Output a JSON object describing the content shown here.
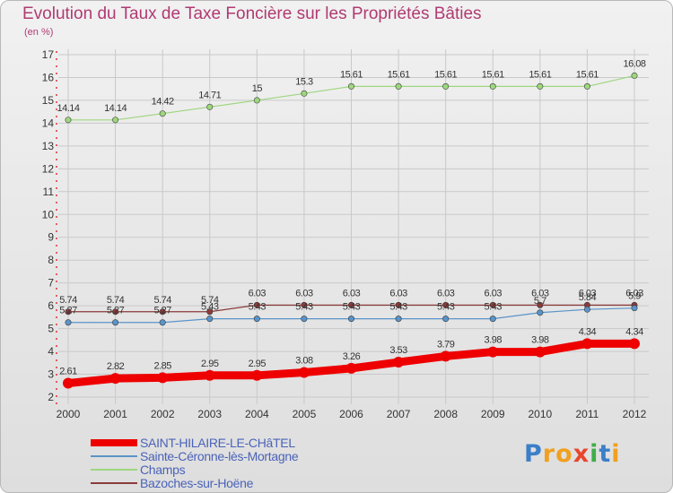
{
  "title": "Evolution du Taux de Taxe Foncière sur les Propriétés Bâties",
  "unit_label": "(en %)",
  "logo": {
    "letters": [
      "P",
      "r",
      "o",
      "x",
      "i",
      "t",
      "i"
    ],
    "colors": [
      "#3b7fc8",
      "#f0a020",
      "#f0a020",
      "#e8452c",
      "#3fae49",
      "#3b7fc8",
      "#f0a020"
    ]
  },
  "chart_data": {
    "type": "line",
    "x": [
      2000,
      2001,
      2002,
      2003,
      2004,
      2005,
      2006,
      2007,
      2008,
      2009,
      2010,
      2011,
      2012
    ],
    "ylim": [
      2,
      17
    ],
    "yticks": [
      2,
      3,
      4,
      5,
      6,
      7,
      8,
      9,
      10,
      11,
      12,
      13,
      14,
      15,
      16,
      17
    ],
    "grid": true,
    "legend_position": "bottom-left",
    "series": [
      {
        "name": "SAINT-HILAIRE-LE-CHâTEL",
        "color": "#ee0000",
        "width": 9,
        "values": [
          2.61,
          2.82,
          2.85,
          2.95,
          2.95,
          3.08,
          3.26,
          3.53,
          3.79,
          3.98,
          3.98,
          4.34,
          4.34
        ],
        "labels": [
          "2.61",
          "2.82",
          "2.85",
          "2.95",
          "2.95",
          "3.08",
          "3.26",
          "3.53",
          "3.79",
          "3.98",
          "3.98",
          "4.34",
          "4.34"
        ]
      },
      {
        "name": "Sainte-Céronne-lès-Mortagne",
        "color": "#5a94c8",
        "width": 1.2,
        "values": [
          5.27,
          5.27,
          5.27,
          5.43,
          5.43,
          5.43,
          5.43,
          5.43,
          5.43,
          5.43,
          5.7,
          5.84,
          5.9
        ],
        "labels": [
          "5.27",
          "5.27",
          "5.27",
          "5.43",
          "5.43",
          "5.43",
          "5.43",
          "5.43",
          "5.43",
          "5.43",
          "5.7",
          "5.84",
          "5.9"
        ]
      },
      {
        "name": "Champs",
        "color": "#9ed67e",
        "width": 1.2,
        "values": [
          14.14,
          14.14,
          14.42,
          14.71,
          15,
          15.3,
          15.61,
          15.61,
          15.61,
          15.61,
          15.61,
          15.61,
          16.08
        ],
        "labels": [
          "14.14",
          "14.14",
          "14.42",
          "14.71",
          "15",
          "15.3",
          "15.61",
          "15.61",
          "15.61",
          "15.61",
          "15.61",
          "15.61",
          "16.08"
        ]
      },
      {
        "name": "Bazoches-sur-Hoëne",
        "color": "#8b3a3a",
        "width": 1.2,
        "values": [
          5.74,
          5.74,
          5.74,
          5.74,
          6.03,
          6.03,
          6.03,
          6.03,
          6.03,
          6.03,
          6.03,
          6.03,
          6.03
        ],
        "labels": [
          "5.74",
          "5.74",
          "5.74",
          "5.74",
          "6.03",
          "6.03",
          "6.03",
          "6.03",
          "6.03",
          "6.03",
          "6.03",
          "6.03",
          "6.03"
        ]
      }
    ]
  }
}
